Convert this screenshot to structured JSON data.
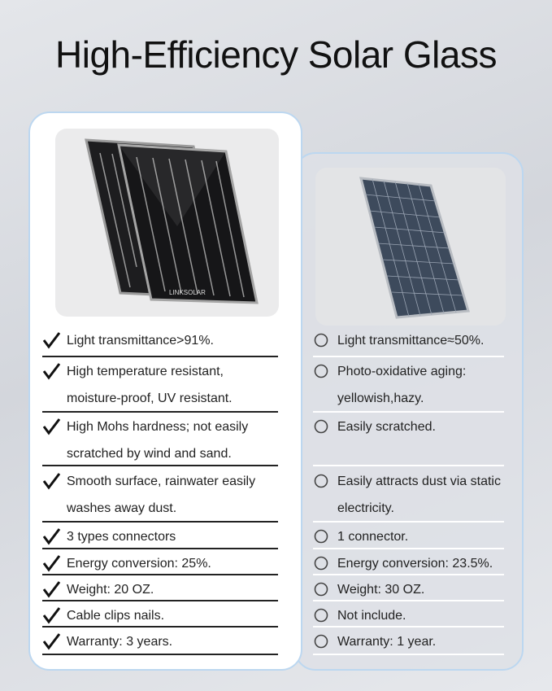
{
  "title": "High-Efficiency Solar Glass",
  "left": {
    "image_label": "LINKSOLAR",
    "items": [
      "Light transmittance>91%.",
      "High temperature resistant, moisture-proof, UV resistant.",
      "High Mohs hardness; not easily scratched by wind and sand.",
      "Smooth surface, rainwater easily washes away dust.",
      "3 types connectors",
      "Energy conversion: 25%.",
      "Weight: 20 OZ.",
      "Cable clips nails.",
      "Warranty: 3 years."
    ]
  },
  "right": {
    "items": [
      "Light transmittance≈50%.",
      "Photo-oxidative aging: yellowish,hazy.",
      "Easily scratched.",
      "Easily attracts dust via static electricity.",
      "1 connector.",
      "Energy conversion: 23.5%.",
      "Weight:  30 OZ.",
      "Not include.",
      "Warranty: 1 year."
    ]
  }
}
